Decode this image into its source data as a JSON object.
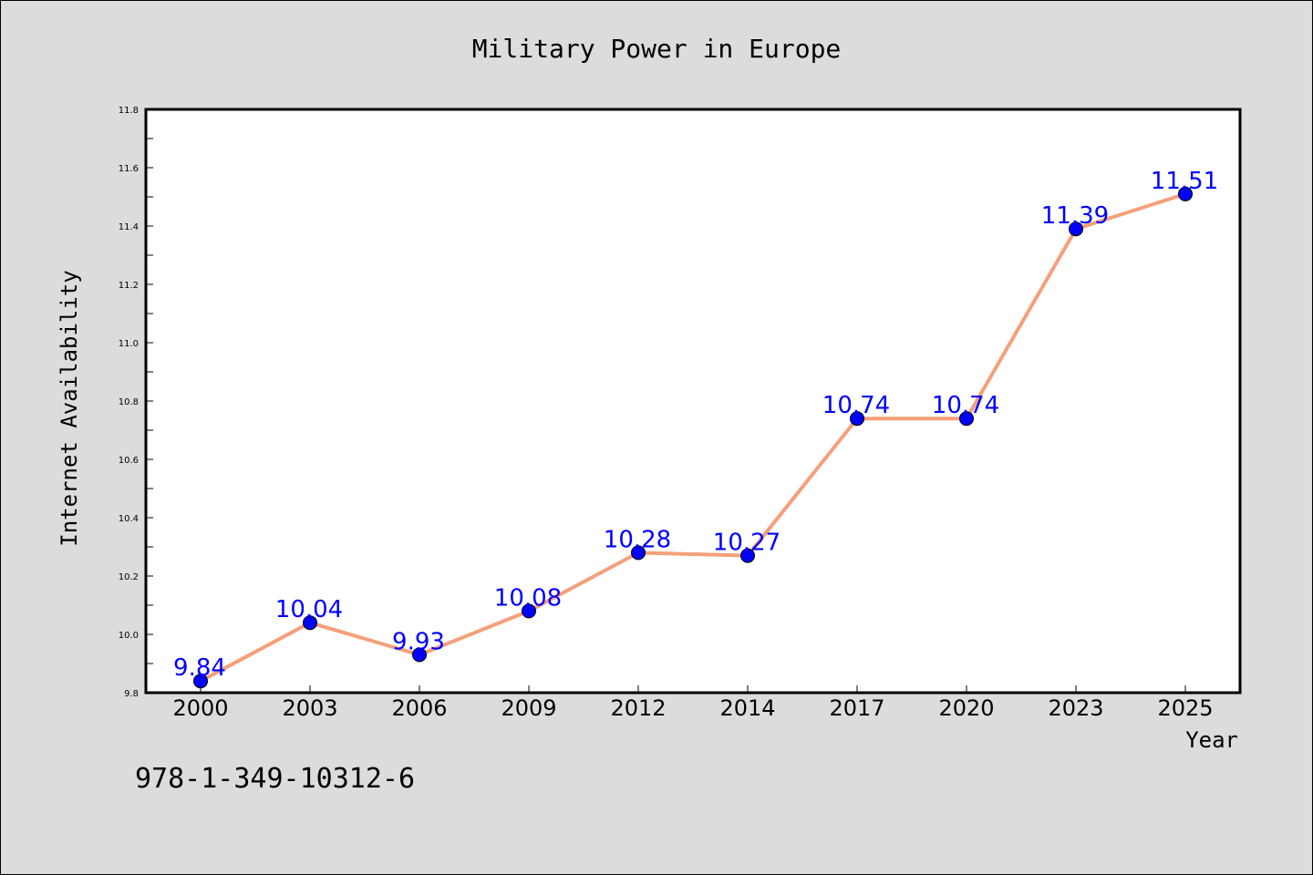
{
  "chart_data": {
    "type": "line",
    "title": "Military Power in Europe",
    "xlabel": "Year",
    "ylabel": "Internet Availability",
    "categories": [
      "2000",
      "2003",
      "2006",
      "2009",
      "2012",
      "2014",
      "2017",
      "2020",
      "2023",
      "2025"
    ],
    "values": [
      9.84,
      10.04,
      9.93,
      10.08,
      10.28,
      10.27,
      10.74,
      10.74,
      11.39,
      11.51
    ],
    "data_labels": [
      "9.84",
      "10.04",
      "9.93",
      "10.08",
      "10.28",
      "10.27",
      "10.74",
      "10.74",
      "11.39",
      "11.51"
    ],
    "ylim": [
      9.8,
      11.8
    ],
    "yticks": [
      "9.8",
      "10.0",
      "10.2",
      "10.4",
      "10.6",
      "10.8",
      "11.0",
      "11.2",
      "11.4",
      "11.6",
      "11.8"
    ],
    "grid": false,
    "line_color": "#f4a07a",
    "marker_color": "#0000ff",
    "label_color": "#0000ff"
  },
  "footer": {
    "identifier": "978-1-349-10312-6"
  }
}
